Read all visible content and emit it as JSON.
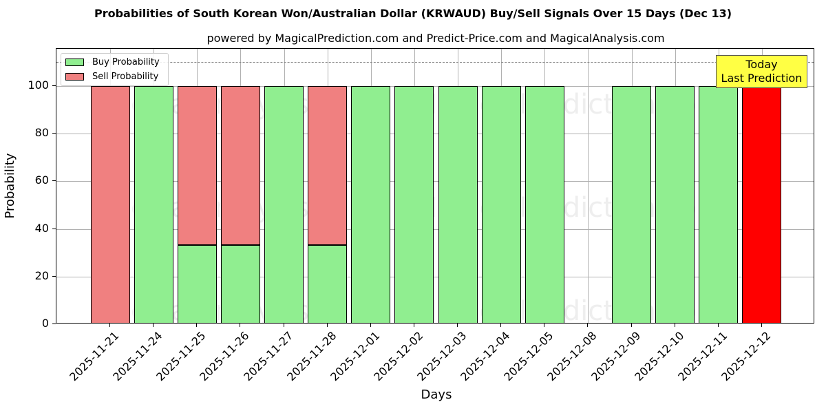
{
  "chart_data": {
    "type": "bar",
    "stacked": true,
    "title": "Probabilities of South Korean Won/Australian Dollar (KRWAUD) Buy/Sell Signals Over 15 Days (Dec 13)",
    "subtitle": "powered by MagicalPrediction.com and Predict-Price.com and MagicalAnalysis.com",
    "xlabel": "Days",
    "ylabel": "Probability",
    "ylim": [
      0,
      115
    ],
    "yticks": [
      0,
      20,
      40,
      60,
      80,
      100
    ],
    "grid": true,
    "reference_line": {
      "y": 110,
      "style": "dashed",
      "color": "#808080"
    },
    "categories": [
      "2025-11-21",
      "2025-11-24",
      "2025-11-25",
      "2025-11-26",
      "2025-11-27",
      "2025-11-28",
      "2025-12-01",
      "2025-12-02",
      "2025-12-03",
      "2025-12-04",
      "2025-12-05",
      "2025-12-08",
      "2025-12-09",
      "2025-12-10",
      "2025-12-11",
      "2025-12-12"
    ],
    "series": [
      {
        "name": "Buy Probability",
        "color": "#90ee90",
        "values": [
          0,
          100,
          33.3,
          33.3,
          100,
          33.3,
          100,
          100,
          100,
          100,
          100,
          0,
          100,
          100,
          100,
          0
        ]
      },
      {
        "name": "Sell Probability",
        "color": "#f08080",
        "values": [
          100,
          0,
          66.7,
          66.7,
          0,
          66.7,
          0,
          0,
          0,
          0,
          0,
          0,
          0,
          0,
          0,
          100
        ]
      }
    ],
    "highlight": {
      "category": "2025-12-12",
      "color": "#ff0000",
      "label": "Today\nLast Prediction"
    },
    "legend": {
      "position": "upper left",
      "entries": [
        "Buy Probability",
        "Sell Probability"
      ]
    }
  },
  "legend": {
    "buy": "Buy Probability",
    "sell": "Sell Probability"
  },
  "annotation": {
    "line1": "Today",
    "line2": "Last Prediction"
  },
  "watermarks": [
    "MagicalAnalysis.com",
    "MagicalPrediction.com"
  ]
}
